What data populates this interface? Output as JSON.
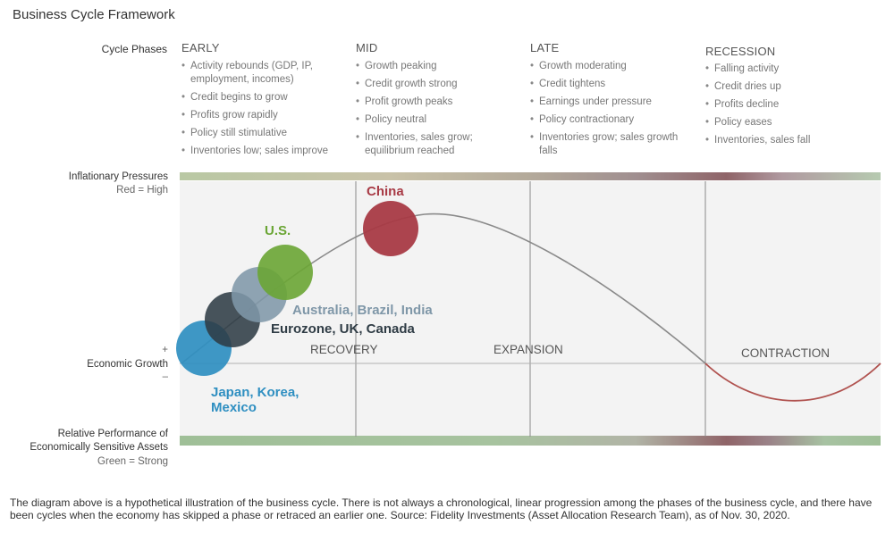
{
  "title": "Business Cycle Framework",
  "cycle_phases_label": "Cycle Phases",
  "phases": [
    {
      "name": "EARLY",
      "bullets": [
        "Activity rebounds (GDP, IP, employment, incomes)",
        "Credit begins to grow",
        "Profits grow rapidly",
        "Policy still stimulative",
        "Inventories low; sales improve"
      ]
    },
    {
      "name": "MID",
      "bullets": [
        "Growth peaking",
        "Credit growth strong",
        "Profit growth peaks",
        "Policy neutral",
        "Inventories, sales grow; equilibrium reached"
      ]
    },
    {
      "name": "LATE",
      "bullets": [
        "Growth moderating",
        "Credit tightens",
        "Earnings under pressure",
        "Policy contractionary",
        "Inventories grow; sales growth falls"
      ]
    },
    {
      "name": "RECESSION",
      "bullets": [
        "Falling activity",
        "Credit dries up",
        "Profits decline",
        "Policy eases",
        "Inventories, sales fall"
      ]
    }
  ],
  "inflation": {
    "label": "Inflationary Pressures",
    "sub": "Red = High"
  },
  "growth": {
    "label": "Economic Growth",
    "plus": "+",
    "minus": "–"
  },
  "assets": {
    "label_line1": "Relative Performance of",
    "label_line2": "Economically Sensitive Assets",
    "sub": "Green = Strong"
  },
  "regions": {
    "recovery": "RECOVERY",
    "expansion": "EXPANSION",
    "contraction": "CONTRACTION"
  },
  "countries": [
    {
      "id": "china",
      "label": "China",
      "color": "#a83a45"
    },
    {
      "id": "us",
      "label": "U.S.",
      "color": "#6aa534"
    },
    {
      "id": "aus",
      "label": "Australia, Brazil, India",
      "color": "#7f97a8"
    },
    {
      "id": "euro",
      "label": "Eurozone, UK, Canada",
      "color": "#2f3c45"
    },
    {
      "id": "japan",
      "label_line1": "Japan, Korea,",
      "label_line2": "Mexico",
      "color": "#2f8fc1"
    }
  ],
  "colors": {
    "curve_up": "#8a8a8a",
    "curve_down": "#b0524f",
    "band_green": "#9fbf97",
    "band_red": "#8f6468"
  },
  "footnote": "The diagram above is a hypothetical illustration of the business cycle. There is not always a chronological, linear progression among the phases of the business cycle, and there have been cycles when the economy has skipped a phase or retraced an earlier one. Source: Fidelity Investments (Asset Allocation Research Team), as of Nov. 30, 2020."
}
